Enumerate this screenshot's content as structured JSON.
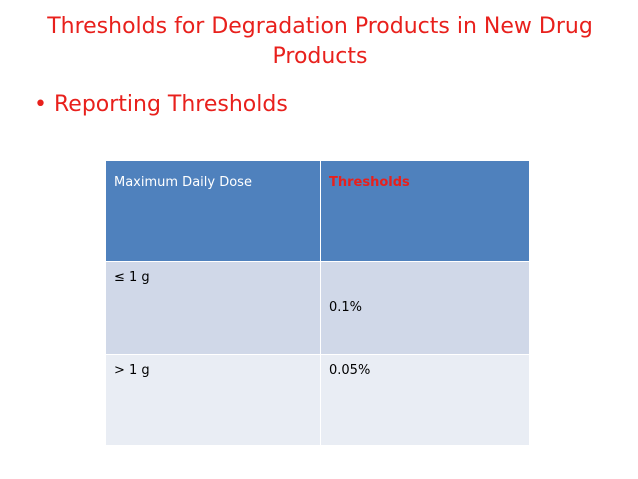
{
  "title": "Thresholds for Degradation Products in New Drug Products",
  "bullet": "Reporting Thresholds",
  "table": {
    "header": [
      "Maximum Daily Dose",
      "Thresholds"
    ],
    "rows": [
      [
        "≤ 1  g",
        "0.1%"
      ],
      [
        "> 1 g",
        "0.05%"
      ]
    ]
  }
}
